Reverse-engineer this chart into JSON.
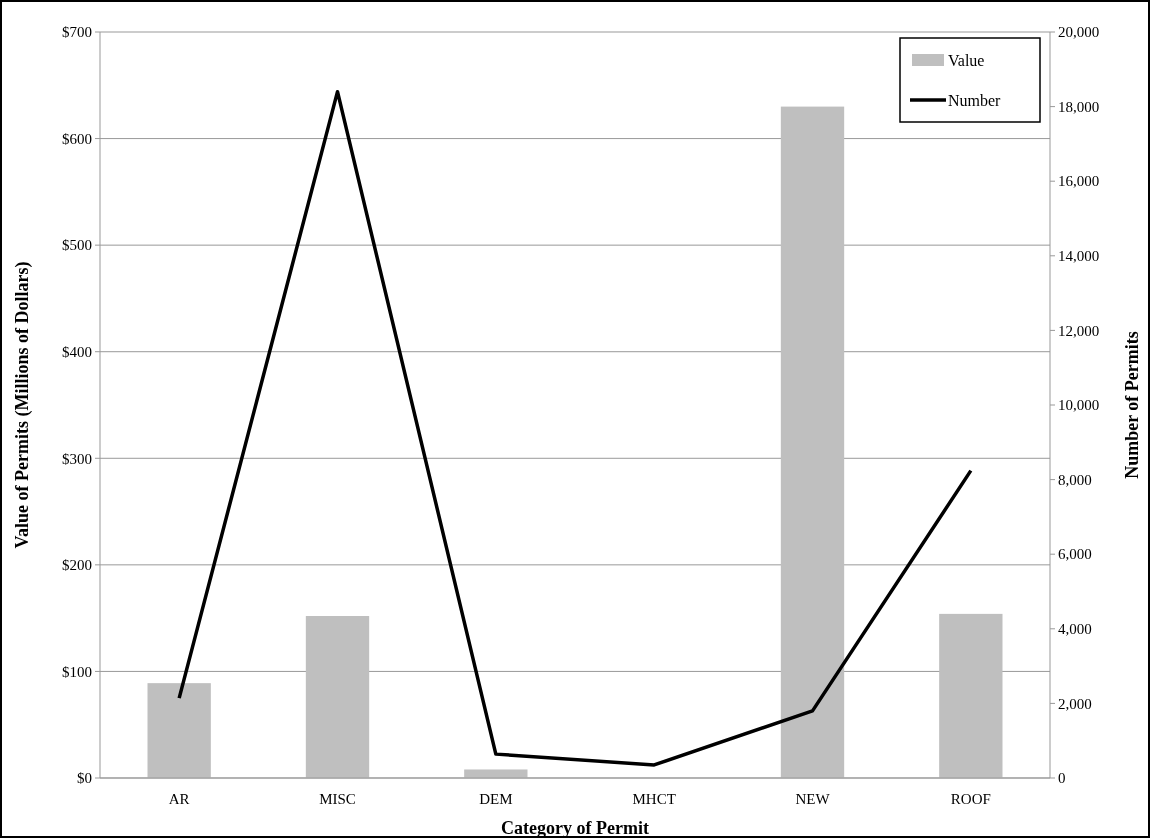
{
  "chart_data": {
    "type": "bar",
    "categories": [
      "AR",
      "MISC",
      "DEM",
      "MHCT",
      "NEW",
      "ROOF"
    ],
    "series": [
      {
        "name": "Value",
        "color": "#bfbfbf",
        "values": [
          89,
          152,
          8,
          0,
          630,
          154
        ]
      },
      {
        "name": "Number",
        "type": "line",
        "axis": "y2",
        "color": "#000000",
        "values": [
          2140,
          18400,
          640,
          350,
          1800,
          8240
        ]
      }
    ],
    "xlabel": "Category of Permit",
    "ylabel": "Value of Permits (Millions of Dollars)",
    "y2label": "Number of Permits",
    "ylim": [
      0,
      700
    ],
    "yticks": [
      {
        "value": 0,
        "label": "$0"
      },
      {
        "value": 100,
        "label": "$100"
      },
      {
        "value": 200,
        "label": "$200"
      },
      {
        "value": 300,
        "label": "$300"
      },
      {
        "value": 400,
        "label": "$400"
      },
      {
        "value": 500,
        "label": "$500"
      },
      {
        "value": 600,
        "label": "$600"
      },
      {
        "value": 700,
        "label": "$700"
      }
    ],
    "y2lim": [
      0,
      20000
    ],
    "y2ticks": [
      {
        "value": 0,
        "label": "0"
      },
      {
        "value": 2000,
        "label": "2,000"
      },
      {
        "value": 4000,
        "label": "4,000"
      },
      {
        "value": 6000,
        "label": "6,000"
      },
      {
        "value": 8000,
        "label": "8,000"
      },
      {
        "value": 10000,
        "label": "10,000"
      },
      {
        "value": 12000,
        "label": "12,000"
      },
      {
        "value": 14000,
        "label": "14,000"
      },
      {
        "value": 16000,
        "label": "16,000"
      },
      {
        "value": 18000,
        "label": "18,000"
      },
      {
        "value": 20000,
        "label": "20,000"
      }
    ],
    "grid": "y",
    "legend": "top right",
    "line_style": "solid",
    "marker": "none"
  }
}
